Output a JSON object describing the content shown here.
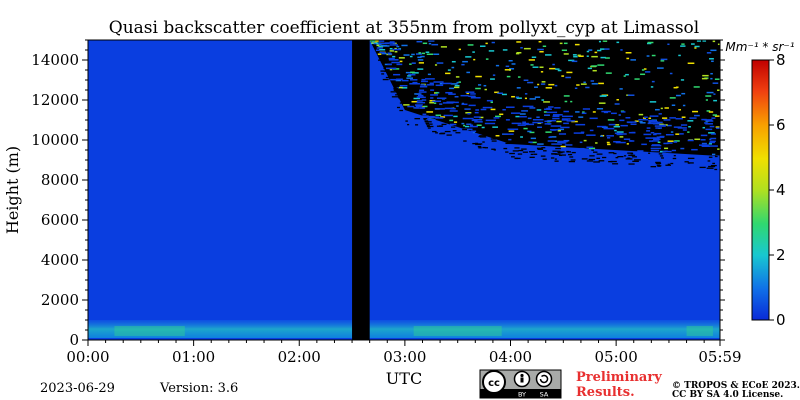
{
  "chart_data": {
    "type": "heatmap",
    "title": "Quasi backscatter coefficient at 355nm from pollyxt_cyp at Limassol",
    "xlabel": "UTC",
    "ylabel": "Height (m)",
    "x_ticks": [
      "00:00",
      "01:00",
      "02:00",
      "03:00",
      "04:00",
      "05:00",
      "05:59"
    ],
    "x_range": [
      "00:00",
      "05:59"
    ],
    "y_ticks": [
      0,
      2000,
      4000,
      6000,
      8000,
      10000,
      12000,
      14000
    ],
    "ylim": [
      0,
      15000
    ],
    "colorbar": {
      "label": "Mm⁻¹ * sr⁻¹",
      "ticks": [
        0,
        2,
        4,
        6,
        8
      ],
      "range": [
        0,
        8
      ],
      "colors": [
        "#0a2ad8",
        "#1070e8",
        "#18c8d0",
        "#30d870",
        "#b0e020",
        "#f0e000",
        "#f8a000",
        "#f04010",
        "#c00000"
      ]
    },
    "no_data_interval": [
      "02:30",
      "02:40"
    ],
    "aerosol_layer_top_m": 1000,
    "noise_boundary_m": [
      {
        "time": "02:40",
        "height": 15000
      },
      {
        "time": "03:00",
        "height": 11500
      },
      {
        "time": "04:00",
        "height": 9800
      },
      {
        "time": "05:59",
        "height": 9200
      }
    ]
  },
  "footer": {
    "date": "2023-06-29",
    "version": "Version: 3.6",
    "preliminary_line1": "Preliminary",
    "preliminary_line2": "Results.",
    "copyright_line1": "© TROPOS & ECoE 2023.",
    "copyright_line2": "CC BY SA 4.0 License.",
    "license_badge": {
      "by": "BY",
      "sa": "SA"
    }
  },
  "colors": {
    "background": "#0a3ee0",
    "no_data": "#000000",
    "preliminary_text": "#e83030"
  }
}
